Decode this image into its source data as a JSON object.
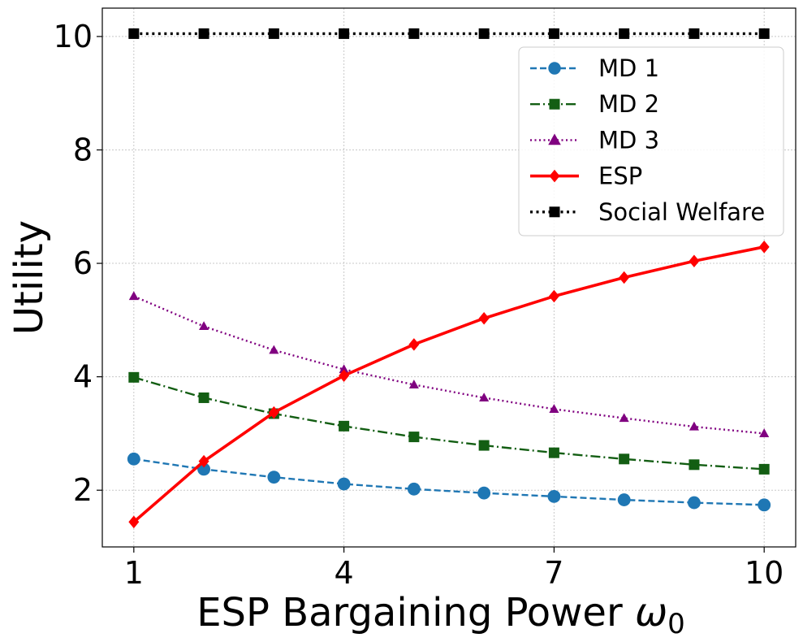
{
  "chart_data": {
    "type": "line",
    "x": [
      1,
      2,
      3,
      4,
      5,
      6,
      7,
      8,
      9,
      10
    ],
    "xlabel": "ESP Bargaining Power ",
    "xlabel_symbol": "ω",
    "xlabel_subscript": "0",
    "ylabel": "Utility",
    "xlim": [
      0.55,
      10.45
    ],
    "ylim": [
      1.0,
      10.5
    ],
    "xticks": [
      1,
      4,
      7,
      10
    ],
    "xtick_labels": [
      "1",
      "4",
      "7",
      "10"
    ],
    "yticks": [
      2,
      4,
      6,
      8,
      10
    ],
    "ytick_labels": [
      "2",
      "4",
      "6",
      "8",
      "10"
    ],
    "grid": true,
    "legend_position": "top-right",
    "series": [
      {
        "name": "MD 1",
        "color": "#1f77b4",
        "linestyle": "dashed",
        "marker": "circle",
        "values": [
          2.55,
          2.37,
          2.23,
          2.11,
          2.02,
          1.95,
          1.89,
          1.83,
          1.78,
          1.74
        ]
      },
      {
        "name": "MD 2",
        "color": "#135e13",
        "linestyle": "dashdot",
        "marker": "square",
        "values": [
          3.99,
          3.63,
          3.35,
          3.13,
          2.94,
          2.79,
          2.66,
          2.55,
          2.45,
          2.37
        ]
      },
      {
        "name": "MD 3",
        "color": "#800080",
        "linestyle": "dotted",
        "marker": "triangle",
        "values": [
          5.42,
          4.89,
          4.47,
          4.13,
          3.86,
          3.63,
          3.43,
          3.27,
          3.12,
          3.0
        ]
      },
      {
        "name": "ESP",
        "color": "#ff0000",
        "linestyle": "solid",
        "marker": "diamond",
        "values": [
          1.44,
          2.51,
          3.37,
          4.02,
          4.57,
          5.03,
          5.42,
          5.75,
          6.04,
          6.29
        ]
      },
      {
        "name": "Social Welfare",
        "color": "#000000",
        "linestyle": "dotted-bold",
        "marker": "square",
        "values": [
          10.05,
          10.05,
          10.05,
          10.05,
          10.05,
          10.05,
          10.05,
          10.05,
          10.05,
          10.05
        ]
      }
    ]
  }
}
